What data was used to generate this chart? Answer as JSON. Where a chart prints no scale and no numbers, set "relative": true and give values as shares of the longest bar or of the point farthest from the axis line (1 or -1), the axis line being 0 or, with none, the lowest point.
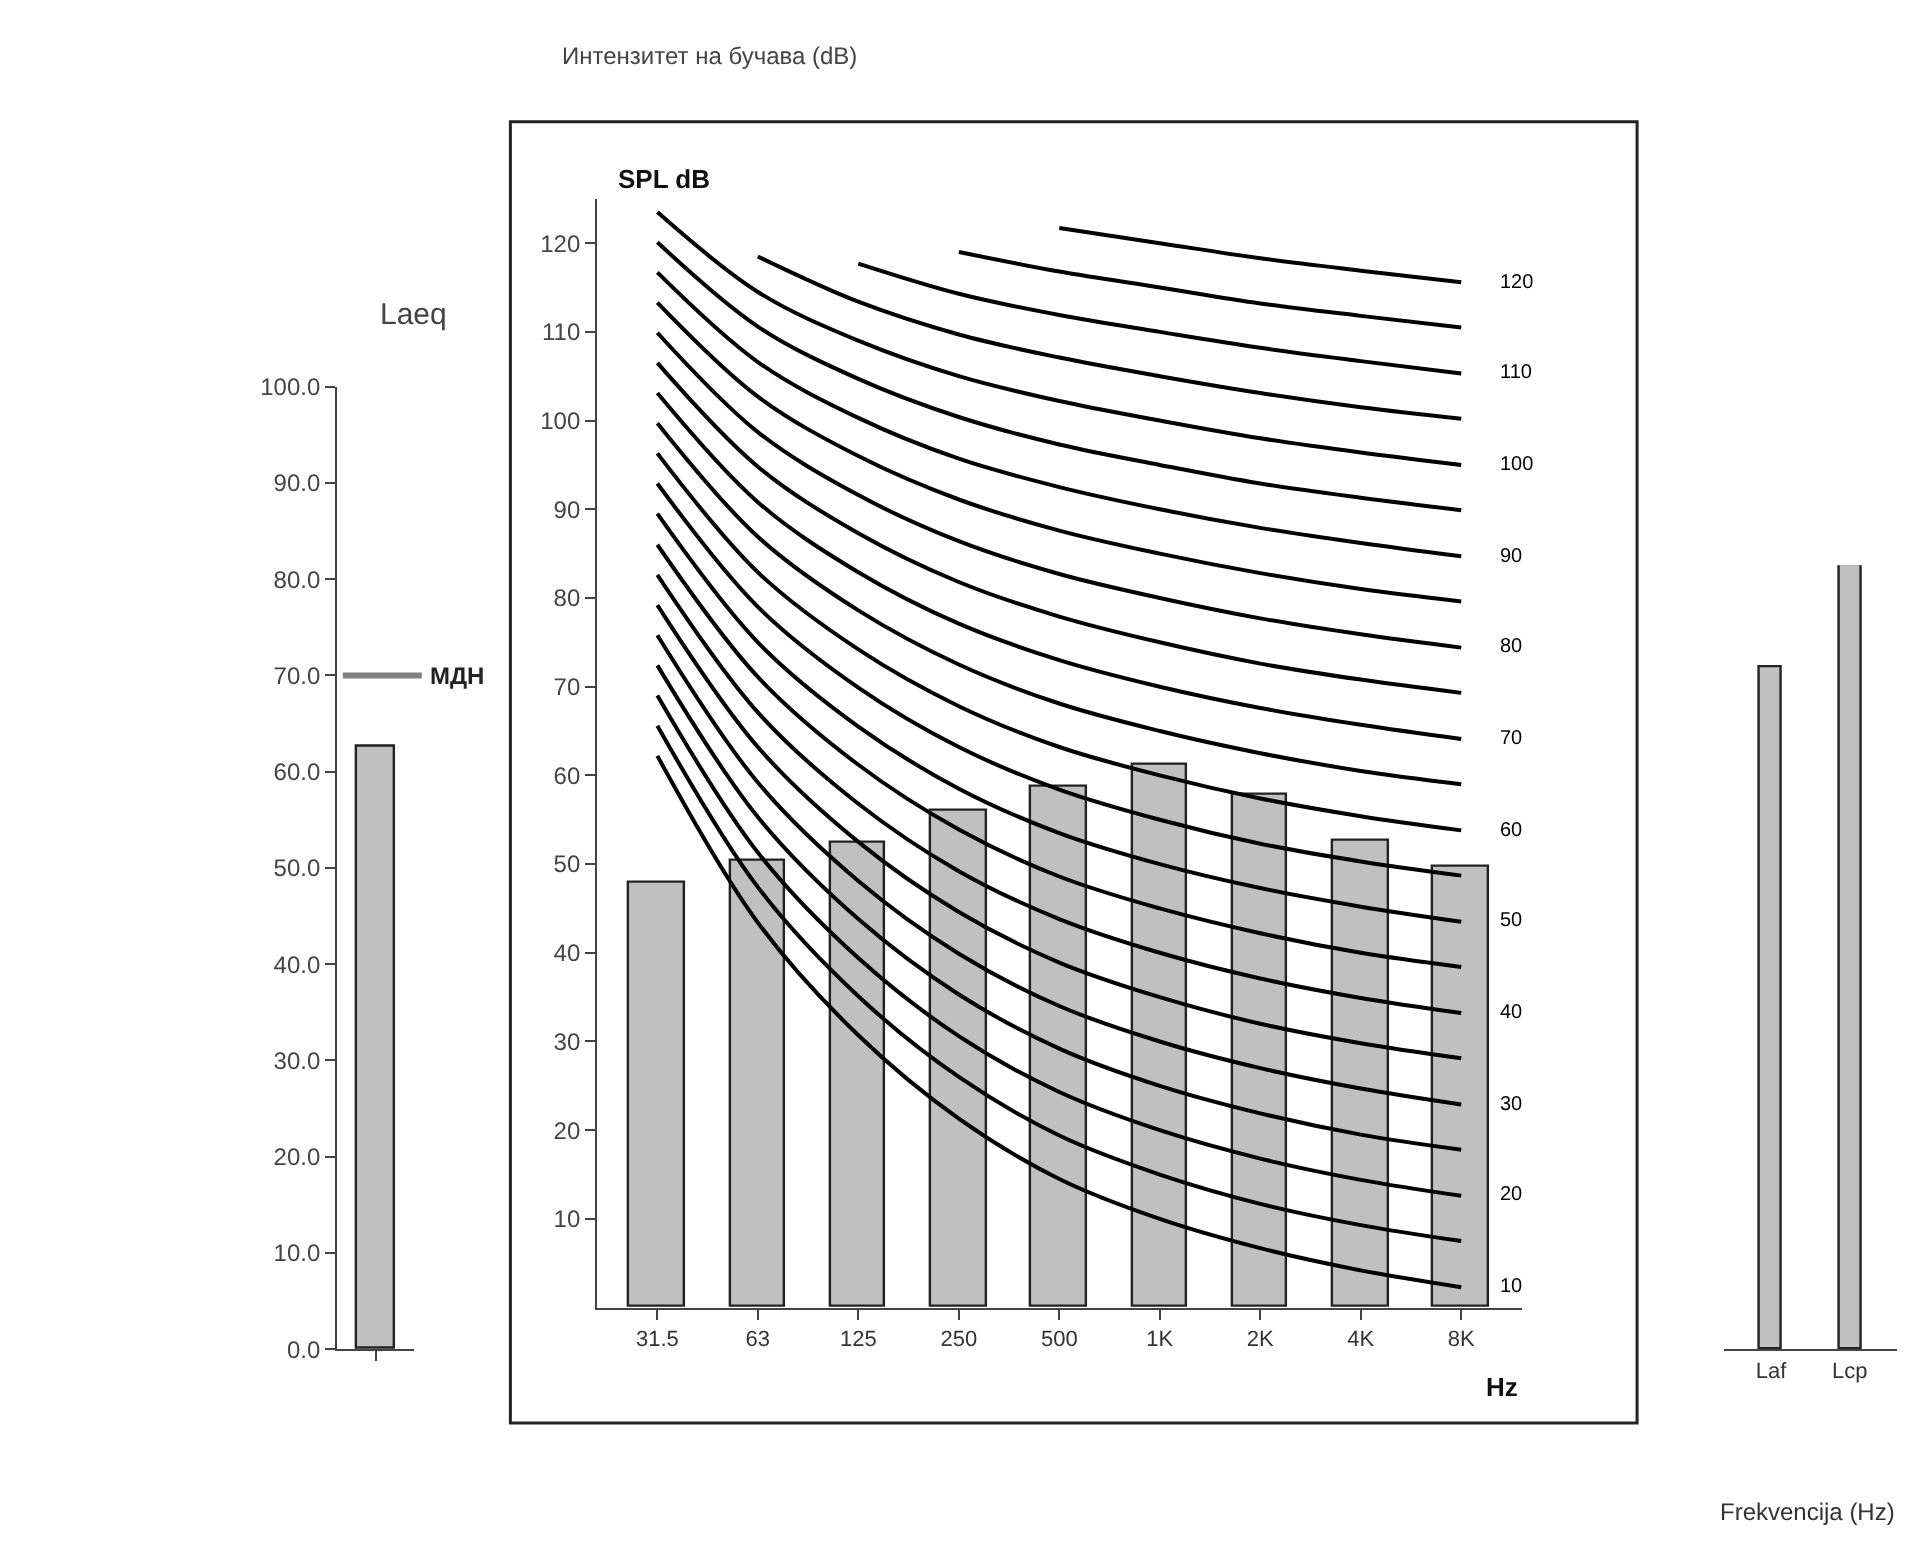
{
  "chart_data": [
    {
      "type": "bar",
      "title": "Laeq",
      "categories": [
        null
      ],
      "values": [
        62.5
      ],
      "color": "#c0c0c0",
      "ylim": [
        0,
        100
      ],
      "yticks": [
        {
          "value": 0,
          "label": "0.0"
        },
        {
          "value": 10,
          "label": "10.0"
        },
        {
          "value": 20,
          "label": "20.0"
        },
        {
          "value": 30,
          "label": "30.0"
        },
        {
          "value": 40,
          "label": "40.0"
        },
        {
          "value": 50,
          "label": "50.0"
        },
        {
          "value": 60,
          "label": "60.0"
        },
        {
          "value": 70,
          "label": "70.0"
        },
        {
          "value": 80,
          "label": "80.0"
        },
        {
          "value": 90,
          "label": "90.0"
        },
        {
          "value": 100,
          "label": "100.0"
        }
      ],
      "ref_lines": [
        {
          "axis": "y",
          "value": 70,
          "label": "МДН",
          "color": "#808080"
        }
      ]
    },
    {
      "type": "bar",
      "title": "Интензитет на бучава (dB)",
      "xlabel": "Hz",
      "ylabel": "SPL dB",
      "categories": [
        "31.5",
        "63",
        "125",
        "250",
        "500",
        "1K",
        "2K",
        "4K",
        "8K"
      ],
      "ylim": [
        0,
        125
      ],
      "yticks": [
        10,
        20,
        30,
        40,
        50,
        60,
        70,
        80,
        90,
        100,
        110,
        120
      ],
      "series": [
        {
          "type": "bar",
          "color": "#c0c0c0",
          "values": [
            48,
            50.4,
            52.4,
            56,
            58.7,
            61.3,
            57.8,
            52.7,
            49.6
          ]
        },
        {
          "type": "line",
          "name": "10",
          "color": "#000000",
          "values": [
            62.2,
            43.4,
            30.7,
            21.3,
            14.5,
            10,
            6.7,
            4.2,
            2.3
          ]
        },
        {
          "type": "line",
          "color": "#000000",
          "values": [
            65.6,
            47.4,
            35.1,
            26.0,
            19.4,
            15,
            11.7,
            9.3,
            7.5
          ]
        },
        {
          "type": "line",
          "name": "20",
          "color": "#000000",
          "values": [
            69.0,
            51.3,
            39.4,
            30.6,
            24.3,
            20,
            16.8,
            14.4,
            12.6
          ]
        },
        {
          "type": "line",
          "color": "#000000",
          "values": [
            72.4,
            55.3,
            43.8,
            35.3,
            29.2,
            25,
            21.9,
            19.5,
            17.8
          ]
        },
        {
          "type": "line",
          "name": "30",
          "color": "#000000",
          "values": [
            75.8,
            59.2,
            48.1,
            39.9,
            34.0,
            30,
            27.0,
            24.7,
            22.9
          ]
        },
        {
          "type": "line",
          "color": "#000000",
          "values": [
            79.2,
            63.2,
            52.5,
            44.6,
            38.9,
            35,
            32.0,
            29.8,
            28.1
          ]
        },
        {
          "type": "line",
          "name": "40",
          "color": "#000000",
          "values": [
            82.6,
            67.1,
            56.8,
            49.2,
            43.8,
            40,
            37.1,
            34.9,
            33.2
          ]
        },
        {
          "type": "line",
          "color": "#000000",
          "values": [
            86.0,
            71.1,
            61.2,
            53.9,
            48.6,
            45,
            42.2,
            40.0,
            38.4
          ]
        },
        {
          "type": "line",
          "name": "50",
          "color": "#000000",
          "values": [
            89.5,
            75.0,
            65.5,
            58.5,
            53.5,
            50,
            47.3,
            45.2,
            43.5
          ]
        },
        {
          "type": "line",
          "color": "#000000",
          "values": [
            92.9,
            79.0,
            69.9,
            63.2,
            58.4,
            55,
            52.3,
            50.3,
            48.7
          ]
        },
        {
          "type": "line",
          "name": "60",
          "color": "#000000",
          "values": [
            96.3,
            82.9,
            74.2,
            67.8,
            63.2,
            60,
            57.4,
            55.4,
            53.8
          ]
        },
        {
          "type": "line",
          "color": "#000000",
          "values": [
            99.7,
            86.9,
            78.6,
            72.5,
            68.1,
            65,
            62.5,
            60.5,
            59.0
          ]
        },
        {
          "type": "line",
          "name": "70",
          "color": "#000000",
          "values": [
            103.1,
            90.8,
            82.9,
            77.1,
            73.0,
            70,
            67.6,
            65.7,
            64.1
          ]
        },
        {
          "type": "line",
          "color": "#000000",
          "values": [
            106.5,
            94.8,
            87.3,
            81.8,
            77.9,
            75,
            72.6,
            70.8,
            69.3
          ]
        },
        {
          "type": "line",
          "name": "80",
          "color": "#000000",
          "values": [
            109.9,
            98.7,
            91.6,
            86.4,
            82.7,
            80,
            77.7,
            75.9,
            74.4
          ]
        },
        {
          "type": "line",
          "color": "#000000",
          "values": [
            113.3,
            102.7,
            96.0,
            91.1,
            87.6,
            85,
            82.8,
            81.0,
            79.6
          ]
        },
        {
          "type": "line",
          "name": "90",
          "color": "#000000",
          "values": [
            116.7,
            106.6,
            100.3,
            95.7,
            92.5,
            90,
            87.9,
            86.2,
            84.7
          ]
        },
        {
          "type": "line",
          "color": "#000000",
          "values": [
            120.1,
            110.6,
            104.7,
            100.4,
            97.3,
            95,
            92.9,
            91.3,
            89.9
          ]
        },
        {
          "type": "line",
          "name": "100",
          "color": "#000000",
          "values": [
            123.5,
            114.5,
            109.0,
            105.0,
            102.2,
            100,
            98.0,
            96.4,
            95.0
          ]
        },
        {
          "type": "line",
          "color": "#000000",
          "values": [
            null,
            118.5,
            113.4,
            109.7,
            107.1,
            105,
            103.1,
            101.5,
            100.2
          ]
        },
        {
          "type": "line",
          "name": "110",
          "color": "#000000",
          "values": [
            null,
            null,
            117.7,
            114.3,
            111.9,
            110,
            108.2,
            106.7,
            105.3
          ]
        },
        {
          "type": "line",
          "color": "#000000",
          "values": [
            null,
            null,
            null,
            119.0,
            116.8,
            115,
            113.2,
            111.8,
            110.5
          ]
        },
        {
          "type": "line",
          "name": "120",
          "color": "#000000",
          "values": [
            null,
            null,
            null,
            null,
            121.7,
            120,
            118.3,
            116.9,
            115.6
          ]
        }
      ]
    },
    {
      "type": "bar",
      "relative": true,
      "categories": [
        "Laf",
        "Lcp"
      ],
      "values": [
        0.87,
        1
      ],
      "color": "#c0c0c0",
      "annotations": [
        "Frekvencija (Hz)"
      ]
    }
  ]
}
